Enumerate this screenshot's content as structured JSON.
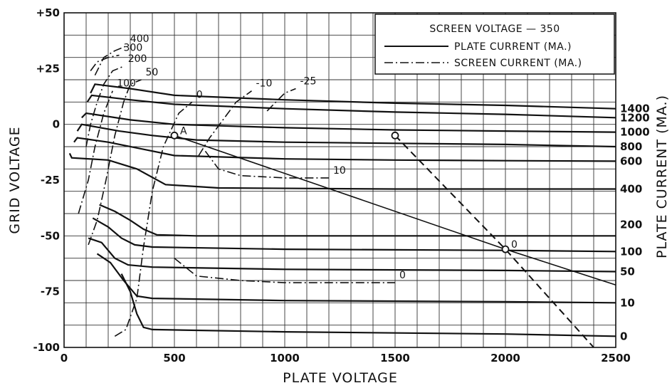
{
  "chart_data": {
    "type": "line",
    "xlabel": "PLATE VOLTAGE",
    "ylabel": "GRID VOLTAGE",
    "y2label": "PLATE CURRENT (MA.)",
    "xlim": [
      0,
      2500
    ],
    "ylim": [
      -100,
      50
    ],
    "x_ticks": [
      "0",
      "500",
      "1000",
      "1500",
      "2000",
      "2500"
    ],
    "y_ticks": [
      "+50",
      "+25",
      "0",
      "-25",
      "-50",
      "-75",
      "-100"
    ],
    "grid": true,
    "legend": {
      "placement": "top-right",
      "title": "SCREEN VOLTAGE — 350",
      "entries": [
        {
          "label": "PLATE CURRENT (MA.)",
          "style": "solid"
        },
        {
          "label": "SCREEN CURRENT (MA.)",
          "style": "dash-dot"
        }
      ]
    },
    "plate_current_series": [
      {
        "name": "1400",
        "points": [
          [
            120,
            14
          ],
          [
            140,
            18
          ],
          [
            300,
            16
          ],
          [
            500,
            13
          ],
          [
            1000,
            11
          ],
          [
            1500,
            9.5
          ],
          [
            2000,
            8.5
          ],
          [
            2500,
            7
          ]
        ]
      },
      {
        "name": "1200",
        "points": [
          [
            105,
            10
          ],
          [
            125,
            13
          ],
          [
            300,
            11
          ],
          [
            500,
            9
          ],
          [
            1000,
            7
          ],
          [
            1500,
            5.5
          ],
          [
            2000,
            4.5
          ],
          [
            2500,
            3
          ]
        ]
      },
      {
        "name": "1000",
        "points": [
          [
            80,
            3
          ],
          [
            100,
            5
          ],
          [
            300,
            2
          ],
          [
            500,
            0
          ],
          [
            1000,
            -1.5
          ],
          [
            1500,
            -2.5
          ],
          [
            2000,
            -3
          ],
          [
            2500,
            -3.5
          ]
        ]
      },
      {
        "name": "800",
        "points": [
          [
            60,
            -3
          ],
          [
            80,
            0
          ],
          [
            250,
            -3
          ],
          [
            400,
            -5
          ],
          [
            600,
            -7
          ],
          [
            1000,
            -8
          ],
          [
            1500,
            -8.5
          ],
          [
            2000,
            -9
          ],
          [
            2500,
            -10
          ]
        ]
      },
      {
        "name": "600",
        "points": [
          [
            45,
            -8
          ],
          [
            60,
            -6
          ],
          [
            200,
            -8
          ],
          [
            350,
            -11
          ],
          [
            500,
            -14
          ],
          [
            1000,
            -15.5
          ],
          [
            1500,
            -16
          ],
          [
            2000,
            -16.3
          ],
          [
            2500,
            -16.5
          ]
        ]
      },
      {
        "name": "400",
        "points": [
          [
            25,
            -13
          ],
          [
            35,
            -15
          ],
          [
            200,
            -16
          ],
          [
            330,
            -20
          ],
          [
            460,
            -27
          ],
          [
            700,
            -28.5
          ],
          [
            1500,
            -29
          ],
          [
            2500,
            -29
          ]
        ]
      },
      {
        "name": "200",
        "points": [
          [
            160,
            -36
          ],
          [
            230,
            -39
          ],
          [
            300,
            -43
          ],
          [
            360,
            -47
          ],
          [
            420,
            -49.5
          ],
          [
            600,
            -50
          ],
          [
            1500,
            -50
          ],
          [
            2500,
            -50
          ]
        ]
      },
      {
        "name": "100",
        "points": [
          [
            130,
            -42
          ],
          [
            200,
            -46
          ],
          [
            260,
            -51
          ],
          [
            320,
            -54
          ],
          [
            400,
            -55
          ],
          [
            1000,
            -56
          ],
          [
            2000,
            -56.5
          ],
          [
            2500,
            -57
          ]
        ]
      },
      {
        "name": "50",
        "points": [
          [
            110,
            -51
          ],
          [
            170,
            -53
          ],
          [
            230,
            -60
          ],
          [
            290,
            -63
          ],
          [
            400,
            -64
          ],
          [
            1000,
            -65
          ],
          [
            2000,
            -65.5
          ],
          [
            2500,
            -66
          ]
        ]
      },
      {
        "name": "10",
        "points": [
          [
            150,
            -58
          ],
          [
            210,
            -62
          ],
          [
            270,
            -70
          ],
          [
            330,
            -77
          ],
          [
            400,
            -78
          ],
          [
            1000,
            -79
          ],
          [
            2000,
            -79.5
          ],
          [
            2500,
            -80
          ]
        ]
      },
      {
        "name": "0",
        "points": [
          [
            260,
            -67
          ],
          [
            300,
            -75
          ],
          [
            330,
            -85
          ],
          [
            360,
            -91
          ],
          [
            400,
            -92
          ],
          [
            1000,
            -93
          ],
          [
            2000,
            -94
          ],
          [
            2500,
            -95
          ]
        ]
      }
    ],
    "screen_current_series": [
      {
        "name": "400",
        "points": [
          [
            140,
            22
          ],
          [
            180,
            30
          ],
          [
            230,
            33
          ],
          [
            280,
            35
          ]
        ]
      },
      {
        "name": "300",
        "points": [
          [
            120,
            24
          ],
          [
            150,
            28
          ],
          [
            200,
            30
          ],
          [
            250,
            31
          ]
        ]
      },
      {
        "name": "200",
        "points": [
          [
            100,
            -10
          ],
          [
            120,
            0
          ],
          [
            150,
            10
          ],
          [
            180,
            18
          ],
          [
            220,
            24
          ],
          [
            270,
            26
          ]
        ]
      },
      {
        "name": "100",
        "points": [
          [
            65,
            -40
          ],
          [
            110,
            -25
          ],
          [
            140,
            -10
          ],
          [
            180,
            5
          ],
          [
            220,
            15
          ]
        ]
      },
      {
        "name": "50",
        "points": [
          [
            110,
            -54
          ],
          [
            150,
            -43
          ],
          [
            190,
            -25
          ],
          [
            230,
            -5
          ],
          [
            270,
            10
          ],
          [
            300,
            18
          ],
          [
            350,
            20
          ]
        ]
      },
      {
        "name": "0",
        "points": [
          [
            230,
            -95
          ],
          [
            280,
            -92
          ],
          [
            330,
            -78
          ],
          [
            360,
            -55
          ],
          [
            400,
            -30
          ],
          [
            450,
            -10
          ],
          [
            520,
            5
          ],
          [
            580,
            10
          ]
        ]
      },
      {
        "name": "-10",
        "points": [
          [
            610,
            -14
          ],
          [
            660,
            -6
          ],
          [
            720,
            2
          ],
          [
            780,
            10
          ],
          [
            850,
            15
          ]
        ]
      },
      {
        "name": "-25",
        "points": [
          [
            920,
            6
          ],
          [
            960,
            10
          ],
          [
            1000,
            14
          ],
          [
            1050,
            16
          ]
        ]
      },
      {
        "name": "10 (screen)",
        "points": [
          [
            640,
            -12
          ],
          [
            700,
            -20
          ],
          [
            800,
            -23
          ],
          [
            1000,
            -24
          ],
          [
            1200,
            -24
          ]
        ]
      },
      {
        "name": "0 (screen)",
        "points": [
          [
            500,
            -60
          ],
          [
            600,
            -68
          ],
          [
            800,
            -70
          ],
          [
            1000,
            -71
          ],
          [
            1500,
            -71
          ]
        ]
      }
    ],
    "load_line": {
      "points": [
        [
          500,
          -5
        ],
        [
          2000,
          -56
        ],
        [
          2500,
          -72
        ]
      ]
    },
    "operating_points": [
      {
        "label": "A",
        "x": 500,
        "y": -5
      },
      {
        "label": "",
        "x": 1500,
        "y": -5
      },
      {
        "label": "0",
        "x": 2000,
        "y": -56
      }
    ],
    "dashed_line": {
      "points": [
        [
          1500,
          -5
        ],
        [
          2000,
          -56
        ],
        [
          2400,
          -100
        ]
      ]
    }
  }
}
